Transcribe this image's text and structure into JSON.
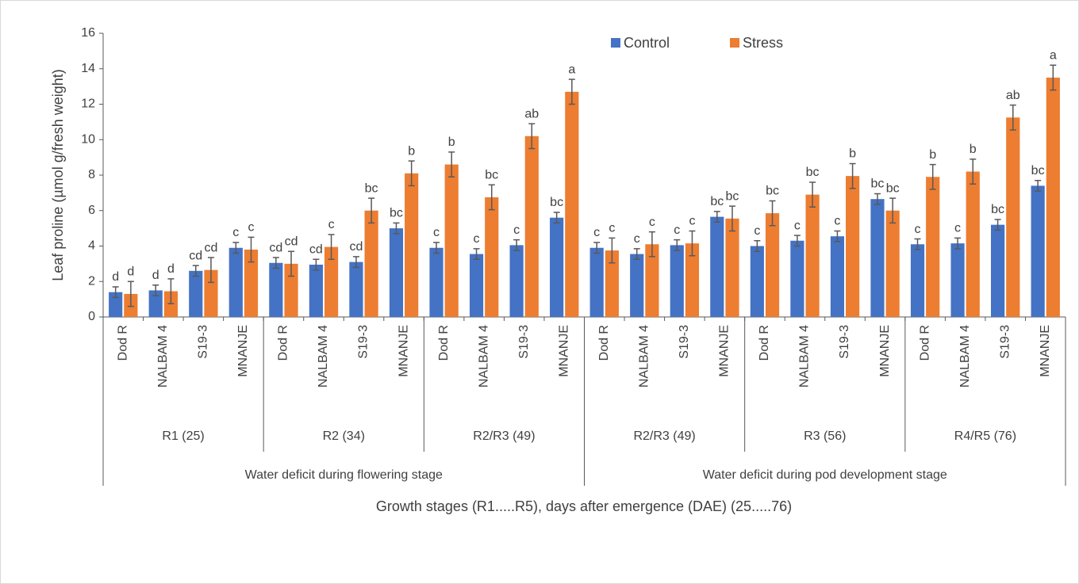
{
  "chart_data": {
    "type": "bar",
    "y_label": "Leaf proline (µmol g/fresh weight)",
    "x_label": "Growth stages (R1.....R5), days after emergence (DAE) (25.....76)",
    "categories": [
      "Dod R",
      "NALBAM 4",
      "S19-3",
      "MNANJE",
      "Dod R",
      "NALBAM 4",
      "S19-3",
      "MNANJE",
      "Dod R",
      "NALBAM 4",
      "S19-3",
      "MNANJE",
      "Dod R",
      "NALBAM 4",
      "S19-3",
      "MNANJE",
      "Dod R",
      "NALBAM 4",
      "S19-3",
      "MNANJE",
      "Dod R",
      "NALBAM 4",
      "S19-3",
      "MNANJE"
    ],
    "groups": [
      "R1 (25)",
      "R2 (34)",
      "R2/R3 (49)",
      "R2/R3 (49)",
      "R3 (56)",
      "R4/R5 (76)"
    ],
    "supergroups": [
      "Water deficit during flowering stage",
      "Water deficit during pod development stage"
    ],
    "series": [
      {
        "name": "Control",
        "color": "#4472c4",
        "values": [
          1.4,
          1.5,
          2.6,
          3.9,
          3.05,
          2.95,
          3.1,
          5.0,
          3.9,
          3.55,
          4.05,
          5.6,
          3.9,
          3.55,
          4.05,
          5.65,
          4.0,
          4.3,
          4.55,
          6.65,
          4.1,
          4.15,
          5.2,
          7.4
        ],
        "errors": [
          0.3,
          0.3,
          0.3,
          0.3,
          0.3,
          0.3,
          0.3,
          0.3,
          0.3,
          0.3,
          0.3,
          0.3,
          0.3,
          0.3,
          0.3,
          0.3,
          0.3,
          0.3,
          0.3,
          0.3,
          0.3,
          0.3,
          0.3,
          0.3
        ],
        "letters": [
          "d",
          "d",
          "cd",
          "c",
          "cd",
          "cd",
          "cd",
          "bc",
          "c",
          "c",
          "c",
          "bc",
          "c",
          "c",
          "c",
          "bc",
          "c",
          "c",
          "c",
          "bc",
          "c",
          "c",
          "bc",
          "bc"
        ]
      },
      {
        "name": "Stress",
        "color": "#ed7d31",
        "values": [
          1.3,
          1.45,
          2.65,
          3.8,
          3.0,
          3.95,
          6.0,
          8.1,
          8.6,
          6.75,
          10.2,
          12.7,
          3.75,
          4.1,
          4.15,
          5.55,
          5.85,
          6.9,
          7.95,
          6.0,
          7.9,
          8.2,
          11.25,
          13.5
        ],
        "errors": [
          0.7,
          0.7,
          0.7,
          0.7,
          0.7,
          0.7,
          0.7,
          0.7,
          0.7,
          0.7,
          0.7,
          0.7,
          0.7,
          0.7,
          0.7,
          0.7,
          0.7,
          0.7,
          0.7,
          0.7,
          0.7,
          0.7,
          0.7,
          0.7
        ],
        "letters": [
          "d",
          "d",
          "cd",
          "c",
          "cd",
          "c",
          "bc",
          "b",
          "b",
          "bc",
          "ab",
          "a",
          "c",
          "c",
          "c",
          "bc",
          "bc",
          "bc",
          "b",
          "bc",
          "b",
          "b",
          "ab",
          "a"
        ]
      }
    ],
    "ylim": [
      0,
      16
    ],
    "yticks": [
      0,
      2,
      4,
      6,
      8,
      10,
      12,
      14,
      16
    ],
    "grid": false,
    "legend": "top"
  }
}
